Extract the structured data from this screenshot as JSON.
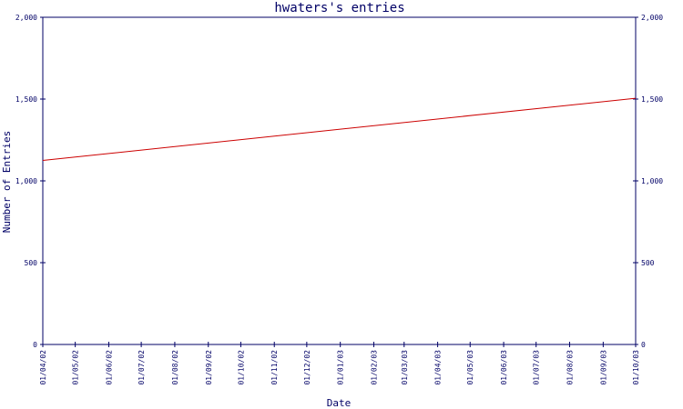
{
  "chart_data": {
    "type": "line",
    "title": "hwaters's entries",
    "xlabel": "Date",
    "ylabel": "Number of Entries",
    "ylim": [
      0,
      2000
    ],
    "y_ticks": [
      "0",
      "500",
      "1,000",
      "1,500",
      "2,000"
    ],
    "y_tick_values": [
      0,
      500,
      1000,
      1500,
      2000
    ],
    "x_tick_labels": [
      "01/04/02",
      "01/05/02",
      "01/06/02",
      "01/07/02",
      "01/08/02",
      "01/09/02",
      "01/10/02",
      "01/11/02",
      "01/12/02",
      "01/01/03",
      "01/02/03",
      "01/03/03",
      "01/04/03",
      "01/05/03",
      "01/06/03",
      "01/07/03",
      "01/08/03",
      "01/09/03",
      "01/10/03"
    ],
    "grid": false,
    "legend": "none",
    "series": [
      {
        "x": [
          "2002-04-01",
          "2003-10-01"
        ],
        "values": [
          1125,
          1505
        ],
        "color": "#cc0000"
      }
    ],
    "axis_color": "#000066",
    "text_color": "#000066"
  }
}
